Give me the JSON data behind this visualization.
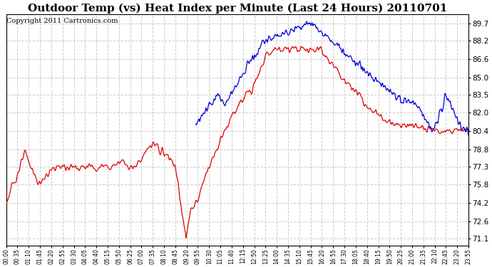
{
  "title": "Outdoor Temp (vs) Heat Index per Minute (Last 24 Hours) 20110701",
  "copyright": "Copyright 2011 Cartronics.com",
  "yticks": [
    71.1,
    72.6,
    74.2,
    75.8,
    77.3,
    78.8,
    80.4,
    82.0,
    83.5,
    85.0,
    86.6,
    88.2,
    89.7
  ],
  "ylim": [
    70.5,
    90.5
  ],
  "xtick_labels": [
    "00:00",
    "00:35",
    "01:10",
    "01:45",
    "02:20",
    "02:55",
    "03:30",
    "04:05",
    "04:40",
    "05:15",
    "05:50",
    "06:25",
    "07:00",
    "07:35",
    "08:10",
    "08:45",
    "09:20",
    "09:55",
    "10:30",
    "11:05",
    "11:40",
    "12:15",
    "12:50",
    "13:25",
    "14:00",
    "14:35",
    "15:10",
    "15:45",
    "16:20",
    "16:55",
    "17:30",
    "18:05",
    "18:40",
    "19:15",
    "19:50",
    "20:25",
    "21:00",
    "21:35",
    "22:10",
    "22:45",
    "23:20",
    "23:55"
  ],
  "bg_color": "#ffffff",
  "grid_color": "#cccccc",
  "line_color_red": "#dd0000",
  "line_color_blue": "#0000dd",
  "title_fontsize": 11,
  "copyright_fontsize": 7
}
